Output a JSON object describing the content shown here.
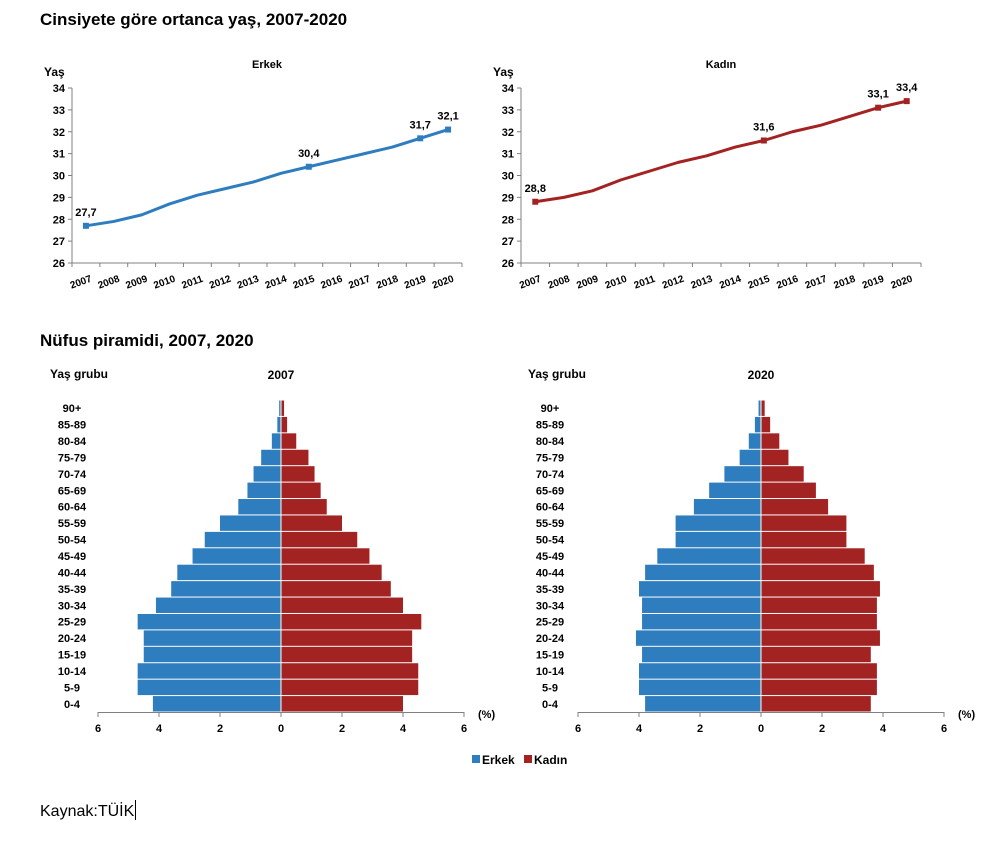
{
  "line_section_title": "Cinsiyete göre ortanca yaş, 2007-2020",
  "pyramid_section_title": "Nüfus piramidi, 2007, 2020",
  "source": "Kaynak:TÜİK",
  "colors": {
    "male": "#2e7dbf",
    "female": "#a32222",
    "axis": "#808080"
  },
  "chart_data": [
    {
      "type": "line",
      "title": "Erkek",
      "ylabel": "Yaş",
      "ylim": [
        26,
        34
      ],
      "yticks": [
        "26",
        "27",
        "28",
        "29",
        "30",
        "31",
        "32",
        "33",
        "34"
      ],
      "x": [
        "2007",
        "2008",
        "2009",
        "2010",
        "2011",
        "2012",
        "2013",
        "2014",
        "2015",
        "2016",
        "2017",
        "2018",
        "2019",
        "2020"
      ],
      "values": [
        27.7,
        27.9,
        28.2,
        28.7,
        29.1,
        29.4,
        29.7,
        30.1,
        30.4,
        30.7,
        31.0,
        31.3,
        31.7,
        32.1
      ],
      "labels": [
        {
          "index": 0,
          "text": "27,7"
        },
        {
          "index": 8,
          "text": "30,4"
        },
        {
          "index": 12,
          "text": "31,7"
        },
        {
          "index": 13,
          "text": "32,1"
        }
      ],
      "color": "#2e7dbf"
    },
    {
      "type": "line",
      "title": "Kadın",
      "ylabel": "Yaş",
      "ylim": [
        26,
        34
      ],
      "yticks": [
        "26",
        "27",
        "28",
        "29",
        "30",
        "31",
        "32",
        "33",
        "34"
      ],
      "x": [
        "2007",
        "2008",
        "2009",
        "2010",
        "2011",
        "2012",
        "2013",
        "2014",
        "2015",
        "2016",
        "2017",
        "2018",
        "2019",
        "2020"
      ],
      "values": [
        28.8,
        29.0,
        29.3,
        29.8,
        30.2,
        30.6,
        30.9,
        31.3,
        31.6,
        32.0,
        32.3,
        32.7,
        33.1,
        33.4
      ],
      "labels": [
        {
          "index": 0,
          "text": "28,8"
        },
        {
          "index": 8,
          "text": "31,6"
        },
        {
          "index": 12,
          "text": "33,1"
        },
        {
          "index": 13,
          "text": "33,4"
        }
      ],
      "color": "#a32222"
    },
    {
      "type": "bar",
      "orientation": "horizontal-pyramid",
      "title": "2007",
      "ylabel": "Yaş grubu",
      "xlabel": "(%)",
      "xlim": [
        -6,
        6
      ],
      "xticks": [
        "6",
        "4",
        "2",
        "0",
        "2",
        "4",
        "6"
      ],
      "categories": [
        "0-4",
        "5-9",
        "10-14",
        "15-19",
        "20-24",
        "25-29",
        "30-34",
        "35-39",
        "40-44",
        "45-49",
        "50-54",
        "55-59",
        "60-64",
        "65-69",
        "70-74",
        "75-79",
        "80-84",
        "85-89",
        "90+"
      ],
      "series": [
        {
          "name": "Erkek",
          "values": [
            4.2,
            4.7,
            4.7,
            4.5,
            4.5,
            4.7,
            4.1,
            3.6,
            3.4,
            2.9,
            2.5,
            2.0,
            1.4,
            1.1,
            0.9,
            0.65,
            0.3,
            0.12,
            0.06
          ]
        },
        {
          "name": "Kadın",
          "values": [
            4.0,
            4.5,
            4.5,
            4.3,
            4.3,
            4.6,
            4.0,
            3.6,
            3.3,
            2.9,
            2.5,
            2.0,
            1.5,
            1.3,
            1.1,
            0.9,
            0.5,
            0.2,
            0.1
          ]
        }
      ]
    },
    {
      "type": "bar",
      "orientation": "horizontal-pyramid",
      "title": "2020",
      "ylabel": "Yaş grubu",
      "xlabel": "(%)",
      "xlim": [
        -6,
        6
      ],
      "xticks": [
        "6",
        "4",
        "2",
        "0",
        "2",
        "4",
        "6"
      ],
      "categories": [
        "0-4",
        "5-9",
        "10-14",
        "15-19",
        "20-24",
        "25-29",
        "30-34",
        "35-39",
        "40-44",
        "45-49",
        "50-54",
        "55-59",
        "60-64",
        "65-69",
        "70-74",
        "75-79",
        "80-84",
        "85-89",
        "90+"
      ],
      "series": [
        {
          "name": "Erkek",
          "values": [
            3.8,
            4.0,
            4.0,
            3.9,
            4.1,
            3.9,
            3.9,
            4.0,
            3.8,
            3.4,
            2.8,
            2.8,
            2.2,
            1.7,
            1.2,
            0.7,
            0.4,
            0.2,
            0.08
          ]
        },
        {
          "name": "Kadın",
          "values": [
            3.6,
            3.8,
            3.8,
            3.6,
            3.9,
            3.8,
            3.8,
            3.9,
            3.7,
            3.4,
            2.8,
            2.8,
            2.2,
            1.8,
            1.4,
            0.9,
            0.6,
            0.3,
            0.12
          ]
        }
      ]
    }
  ],
  "legend": [
    {
      "label": "Erkek",
      "color": "#2e7dbf"
    },
    {
      "label": "Kadın",
      "color": "#a32222"
    }
  ]
}
